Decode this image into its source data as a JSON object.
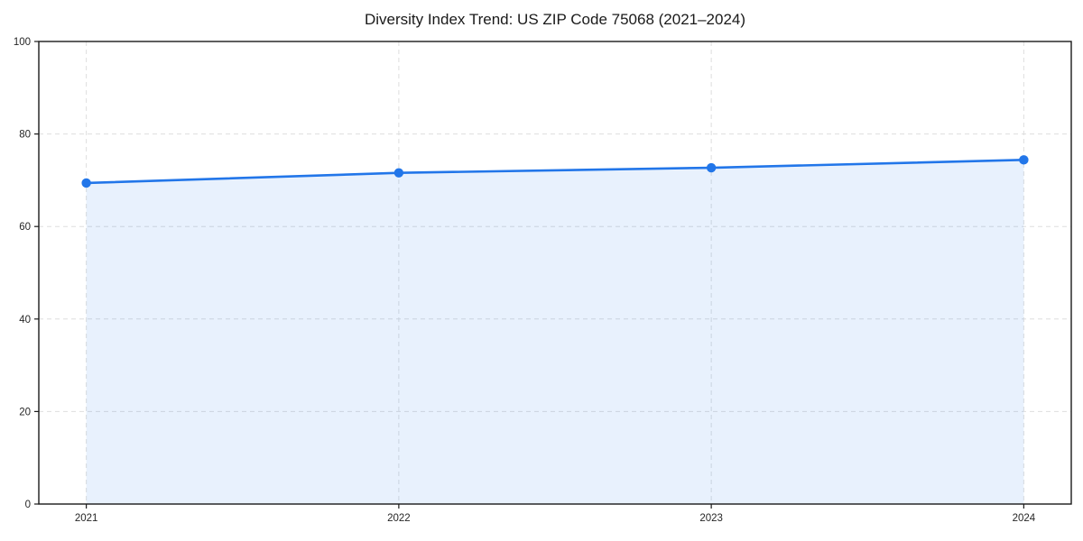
{
  "chart_data": {
    "type": "line",
    "title": "Diversity Index Trend: US ZIP Code 75068 (2021–2024)",
    "categories": [
      "2021",
      "2022",
      "2023",
      "2024"
    ],
    "series": [
      {
        "name": "Diversity Index",
        "values": [
          69.4,
          71.6,
          72.7,
          74.4
        ]
      }
    ],
    "xlabel": "",
    "ylabel": "",
    "ylim": [
      0,
      100
    ],
    "yticks": [
      0,
      20,
      40,
      60,
      80,
      100
    ],
    "grid": true,
    "grid_style": "dashed",
    "legend_position": "none",
    "area_fill_under_line": true,
    "markers": true,
    "colors": {
      "line": "#2276e9",
      "area_fill_tint": "#e8f1fc",
      "grid": "#dedede",
      "axis": "#1a1a1a",
      "tick_text": "#262626",
      "background": "#ffffff"
    }
  }
}
